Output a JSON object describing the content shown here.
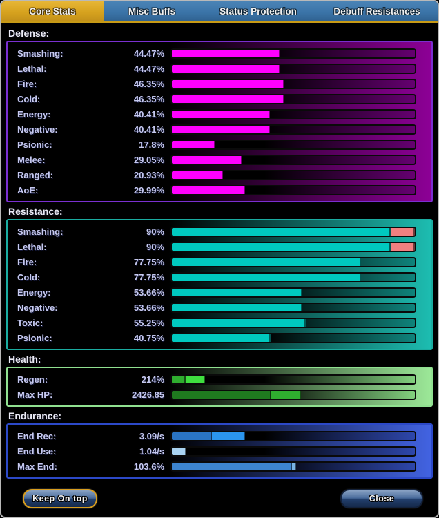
{
  "tabs": [
    {
      "label": "Core Stats",
      "active": true
    },
    {
      "label": "Misc Buffs",
      "active": false
    },
    {
      "label": "Status Protection",
      "active": false
    },
    {
      "label": "Debuff Resistances",
      "active": false
    }
  ],
  "colors": {
    "tab_active": "#d6a21e",
    "tab_inactive": "#3b74a8",
    "tab_underline": "#c79a16",
    "defense_fill": "#ff00ff",
    "resistance_fill": "#00c9bf",
    "resistance_overcap": "#f28080",
    "window_border": "#b9b9b9"
  },
  "sections": [
    {
      "id": "defense",
      "heading": "Defense:",
      "border": "#7a2fd0",
      "panel_end": "#8d0096",
      "track_end": "#650070",
      "rows": [
        {
          "label": "Smashing:",
          "value": "44.47%",
          "segments": [
            {
              "color": "#ff00ff",
              "pct": 44.47
            }
          ]
        },
        {
          "label": "Lethal:",
          "value": "44.47%",
          "segments": [
            {
              "color": "#ff00ff",
              "pct": 44.47
            }
          ]
        },
        {
          "label": "Fire:",
          "value": "46.35%",
          "segments": [
            {
              "color": "#ff00ff",
              "pct": 46.35
            }
          ]
        },
        {
          "label": "Cold:",
          "value": "46.35%",
          "segments": [
            {
              "color": "#ff00ff",
              "pct": 46.35
            }
          ]
        },
        {
          "label": "Energy:",
          "value": "40.41%",
          "segments": [
            {
              "color": "#ff00ff",
              "pct": 40.41
            }
          ]
        },
        {
          "label": "Negative:",
          "value": "40.41%",
          "segments": [
            {
              "color": "#ff00ff",
              "pct": 40.41
            }
          ]
        },
        {
          "label": "Psionic:",
          "value": "17.8%",
          "segments": [
            {
              "color": "#ff00ff",
              "pct": 17.8
            }
          ]
        },
        {
          "label": "Melee:",
          "value": "29.05%",
          "segments": [
            {
              "color": "#ff00ff",
              "pct": 29.05
            }
          ]
        },
        {
          "label": "Ranged:",
          "value": "20.93%",
          "segments": [
            {
              "color": "#ff00ff",
              "pct": 20.93
            }
          ]
        },
        {
          "label": "AoE:",
          "value": "29.99%",
          "segments": [
            {
              "color": "#ff00ff",
              "pct": 29.99
            }
          ]
        }
      ]
    },
    {
      "id": "resistance",
      "heading": "Resistance:",
      "border": "#1aaca0",
      "panel_end": "#1dbdb1",
      "track_end": "#0f837b",
      "rows": [
        {
          "label": "Smashing:",
          "value": "90%",
          "segments": [
            {
              "color": "#00c9bf",
              "pct": 90
            },
            {
              "color": "#f28080",
              "pct": 10
            }
          ]
        },
        {
          "label": "Lethal:",
          "value": "90%",
          "segments": [
            {
              "color": "#00c9bf",
              "pct": 90
            },
            {
              "color": "#f28080",
              "pct": 10
            }
          ]
        },
        {
          "label": "Fire:",
          "value": "77.75%",
          "segments": [
            {
              "color": "#00c9bf",
              "pct": 77.75
            }
          ]
        },
        {
          "label": "Cold:",
          "value": "77.75%",
          "segments": [
            {
              "color": "#00c9bf",
              "pct": 77.75
            }
          ]
        },
        {
          "label": "Energy:",
          "value": "53.66%",
          "segments": [
            {
              "color": "#00c9bf",
              "pct": 53.66
            }
          ]
        },
        {
          "label": "Negative:",
          "value": "53.66%",
          "segments": [
            {
              "color": "#00c9bf",
              "pct": 53.66
            }
          ]
        },
        {
          "label": "Toxic:",
          "value": "55.25%",
          "segments": [
            {
              "color": "#00c9bf",
              "pct": 55.25
            }
          ]
        },
        {
          "label": "Psionic:",
          "value": "40.75%",
          "segments": [
            {
              "color": "#00c9bf",
              "pct": 40.75
            }
          ]
        }
      ]
    },
    {
      "id": "health",
      "heading": "Health:",
      "border": "#90e090",
      "panel_end": "#9ce898",
      "track_end": "#82d07e",
      "rows": [
        {
          "label": "Regen:",
          "value": "214%",
          "segments": [
            {
              "color": "#2fae2f",
              "pct": 5.7
            },
            {
              "color": "#3fdf3f",
              "pct": 7.9
            }
          ]
        },
        {
          "label": "Max HP:",
          "value": "2426.85",
          "segments": [
            {
              "color": "#1f7a1f",
              "pct": 41.0
            },
            {
              "color": "#2fae2f",
              "pct": 12.0
            }
          ]
        }
      ]
    },
    {
      "id": "endurance",
      "heading": "Endurance:",
      "border": "#2c49c8",
      "panel_end": "#4263e2",
      "track_end": "#2e47ab",
      "rows": [
        {
          "label": "End Rec:",
          "value": "3.09/s",
          "segments": [
            {
              "color": "#2a74c4",
              "pct": 16.5
            },
            {
              "color": "#2b95ef",
              "pct": 13.5
            }
          ]
        },
        {
          "label": "End Use:",
          "value": "1.04/s",
          "segments": [
            {
              "color": "#a9d3f2",
              "pct": 6.0
            }
          ]
        },
        {
          "label": "Max End:",
          "value": "103.6%",
          "segments": [
            {
              "color": "#3d85cf",
              "pct": 49.5
            },
            {
              "color": "#79b4e4",
              "pct": 1.5
            }
          ]
        }
      ]
    }
  ],
  "footer": {
    "keep_on_top": "Keep On top",
    "close": "Close"
  }
}
